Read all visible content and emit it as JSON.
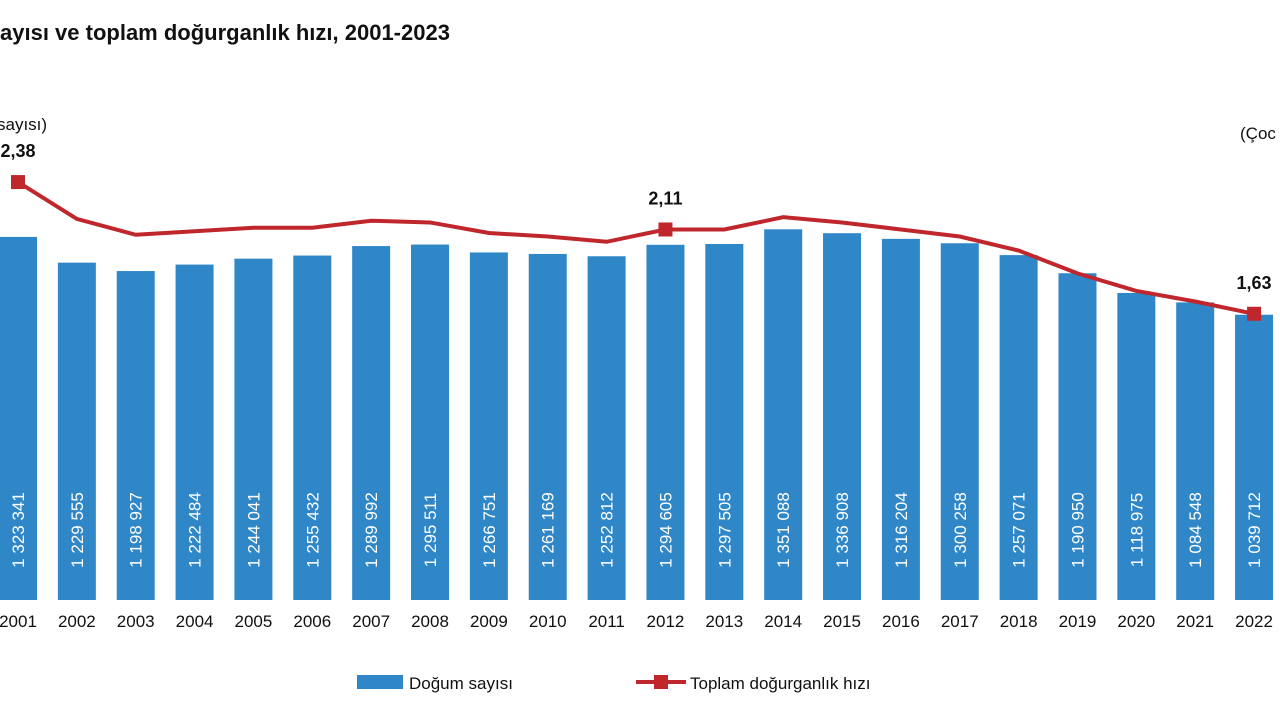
{
  "chart_data": {
    "type": "bar-line",
    "title": "ayısı ve toplam doğurganlık hızı, 2001-2023",
    "y_label": "sayısı)",
    "y2_label": "(Çoc",
    "categories": [
      "2001",
      "2002",
      "2003",
      "2004",
      "2005",
      "2006",
      "2007",
      "2008",
      "2009",
      "2010",
      "2011",
      "2012",
      "2013",
      "2014",
      "2015",
      "2016",
      "2017",
      "2018",
      "2019",
      "2020",
      "2021",
      "2022"
    ],
    "ylim": [
      0,
      1600000
    ],
    "y2lim": [
      0,
      2.5
    ],
    "series": [
      {
        "name": "Doğum sayısı",
        "type": "bar",
        "color": "#2f87c8",
        "values": [
          1323341,
          1229555,
          1198927,
          1222484,
          1244041,
          1255432,
          1289992,
          1295511,
          1266751,
          1261169,
          1252812,
          1294605,
          1297505,
          1351088,
          1336908,
          1316204,
          1300258,
          1257071,
          1190950,
          1118975,
          1084548,
          1039712
        ],
        "value_labels": [
          "1 323 341",
          "1 229 555",
          "1 198 927",
          "1 222 484",
          "1 244 041",
          "1 255 432",
          "1 289 992",
          "1 295 511",
          "1 266 751",
          "1 261 169",
          "1 252 812",
          "1 294 605",
          "1 297 505",
          "1 351 088",
          "1 336 908",
          "1 316 204",
          "1 300 258",
          "1 257 071",
          "1 190 950",
          "1 118 975",
          "1 084 548",
          "1 039 712"
        ]
      },
      {
        "name": "Toplam doğurganlık hızı",
        "type": "line",
        "axis": "y2",
        "color": "#c0272d",
        "values": [
          2.38,
          2.17,
          2.08,
          2.1,
          2.12,
          2.12,
          2.16,
          2.15,
          2.09,
          2.07,
          2.04,
          2.11,
          2.11,
          2.18,
          2.15,
          2.11,
          2.07,
          1.99,
          1.86,
          1.76,
          1.7,
          1.63
        ],
        "value_labels": [
          "2,38",
          null,
          null,
          null,
          null,
          null,
          null,
          null,
          null,
          null,
          null,
          "2,11",
          null,
          null,
          null,
          null,
          null,
          null,
          null,
          null,
          null,
          "1,63"
        ]
      }
    ]
  }
}
